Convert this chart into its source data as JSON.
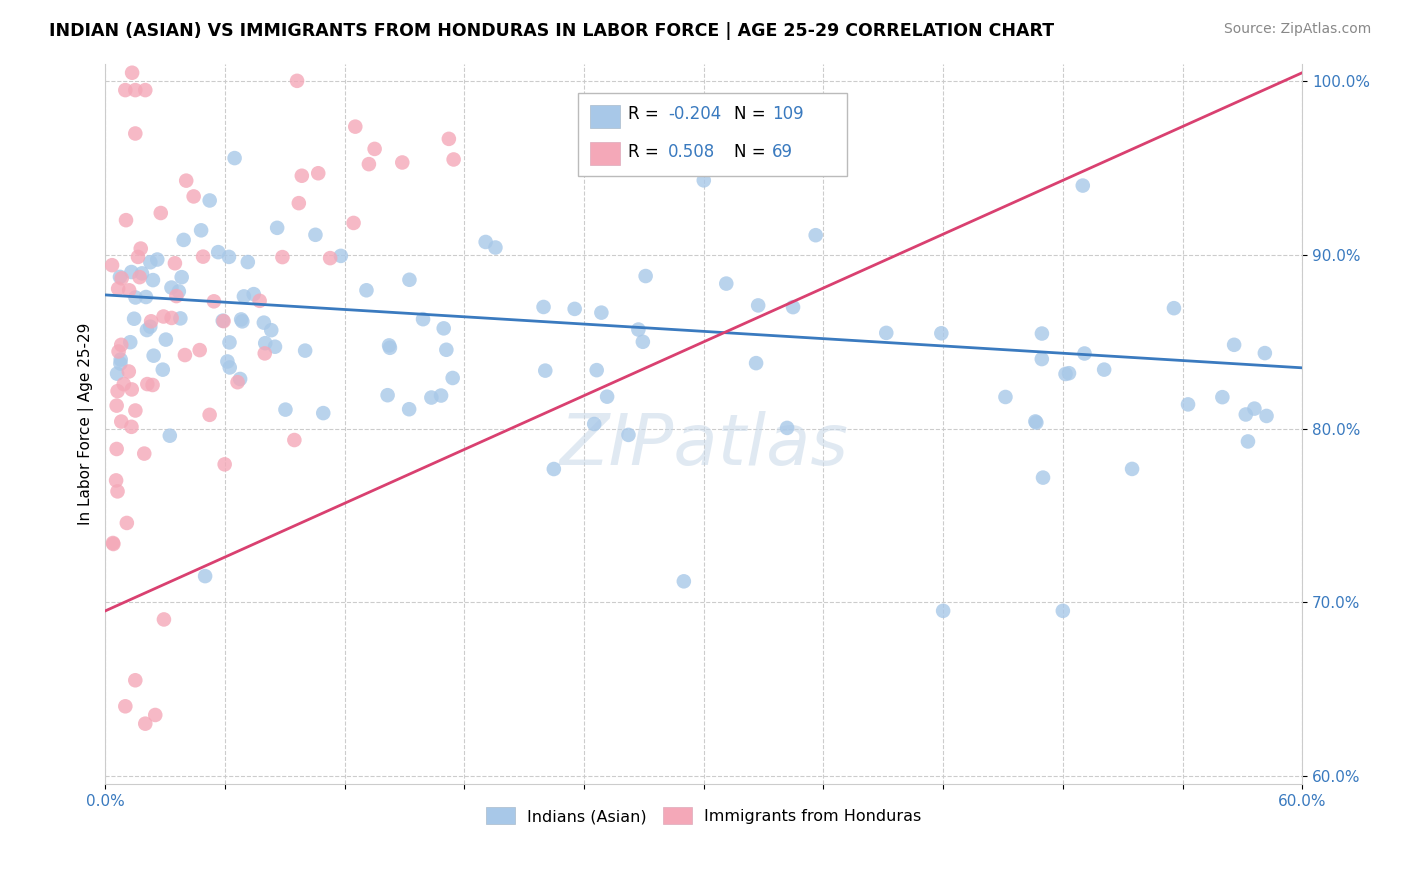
{
  "title": "INDIAN (ASIAN) VS IMMIGRANTS FROM HONDURAS IN LABOR FORCE | AGE 25-29 CORRELATION CHART",
  "source": "Source: ZipAtlas.com",
  "ylabel": "In Labor Force | Age 25-29",
  "xlim": [
    0.0,
    0.6
  ],
  "ylim": [
    0.595,
    1.01
  ],
  "blue_R": -0.204,
  "blue_N": 109,
  "pink_R": 0.508,
  "pink_N": 69,
  "blue_color": "#a8c8e8",
  "pink_color": "#f4a8b8",
  "blue_line_color": "#3a7abf",
  "pink_line_color": "#d94070",
  "legend_label_blue": "Indians (Asian)",
  "legend_label_pink": "Immigrants from Honduras",
  "watermark": "ZIPatlas"
}
